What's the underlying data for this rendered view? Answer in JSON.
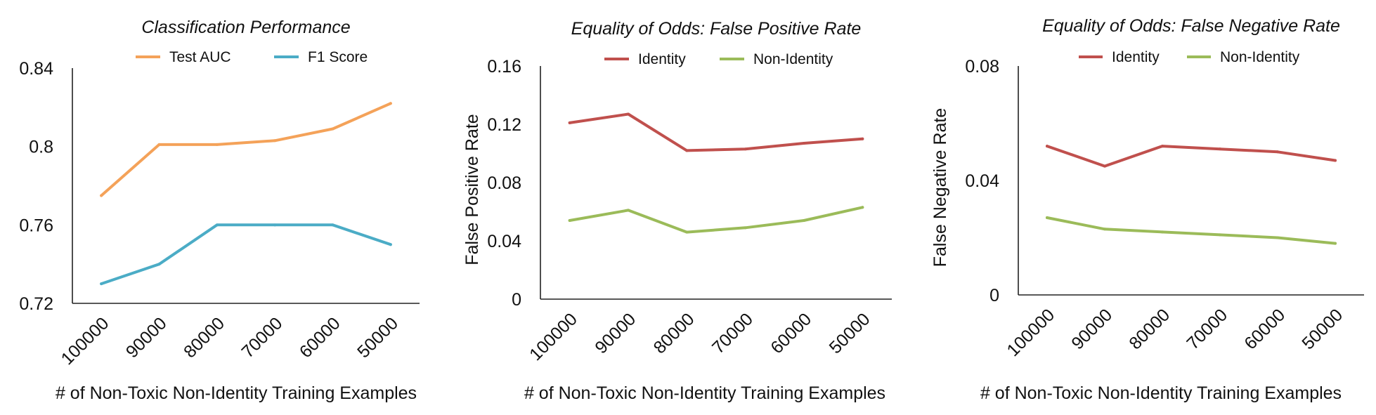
{
  "chart_data": [
    {
      "type": "line",
      "title": "Classification Performance",
      "xlabel": "# of Non-Toxic Non-Identity Training Examples",
      "ylabel": "",
      "categories": [
        "100000",
        "90000",
        "80000",
        "70000",
        "60000",
        "50000"
      ],
      "ylim": [
        0.72,
        0.84
      ],
      "yticks": [
        "0.72",
        "0.76",
        "0.8",
        "0.84"
      ],
      "legend_position": "top",
      "grid": false,
      "series": [
        {
          "name": "Test AUC",
          "color": "#F4A259",
          "values": [
            0.775,
            0.801,
            0.801,
            0.803,
            0.809,
            0.822
          ]
        },
        {
          "name": "F1 Score",
          "color": "#4BACC6",
          "values": [
            0.73,
            0.74,
            0.76,
            0.76,
            0.76,
            0.75
          ]
        }
      ]
    },
    {
      "type": "line",
      "title": "Equality of Odds: False Positive Rate",
      "xlabel": "# of Non-Toxic Non-Identity Training Examples",
      "ylabel": "False Positive Rate",
      "categories": [
        "100000",
        "90000",
        "80000",
        "70000",
        "60000",
        "50000"
      ],
      "ylim": [
        0,
        0.16
      ],
      "yticks": [
        "0",
        "0.04",
        "0.08",
        "0.12",
        "0.16"
      ],
      "legend_position": "top",
      "grid": false,
      "series": [
        {
          "name": "Identity",
          "color": "#C0504D",
          "values": [
            0.121,
            0.127,
            0.102,
            0.103,
            0.107,
            0.11
          ]
        },
        {
          "name": "Non-Identity",
          "color": "#9BBB59",
          "values": [
            0.054,
            0.061,
            0.046,
            0.049,
            0.054,
            0.063
          ]
        }
      ]
    },
    {
      "type": "line",
      "title": "Equality of Odds: False Negative Rate",
      "xlabel": "# of Non-Toxic Non-Identity Training Examples",
      "ylabel": "False Negative  Rate",
      "categories": [
        "100000",
        "90000",
        "80000",
        "70000",
        "60000",
        "50000"
      ],
      "ylim": [
        0,
        0.08
      ],
      "yticks": [
        "0",
        "0.04",
        "0.08"
      ],
      "legend_position": "top",
      "grid": false,
      "series": [
        {
          "name": "Identity",
          "color": "#C0504D",
          "values": [
            0.052,
            0.045,
            0.052,
            0.051,
            0.05,
            0.047
          ]
        },
        {
          "name": "Non-Identity",
          "color": "#9BBB59",
          "values": [
            0.027,
            0.023,
            0.022,
            0.021,
            0.02,
            0.018
          ]
        }
      ]
    }
  ]
}
